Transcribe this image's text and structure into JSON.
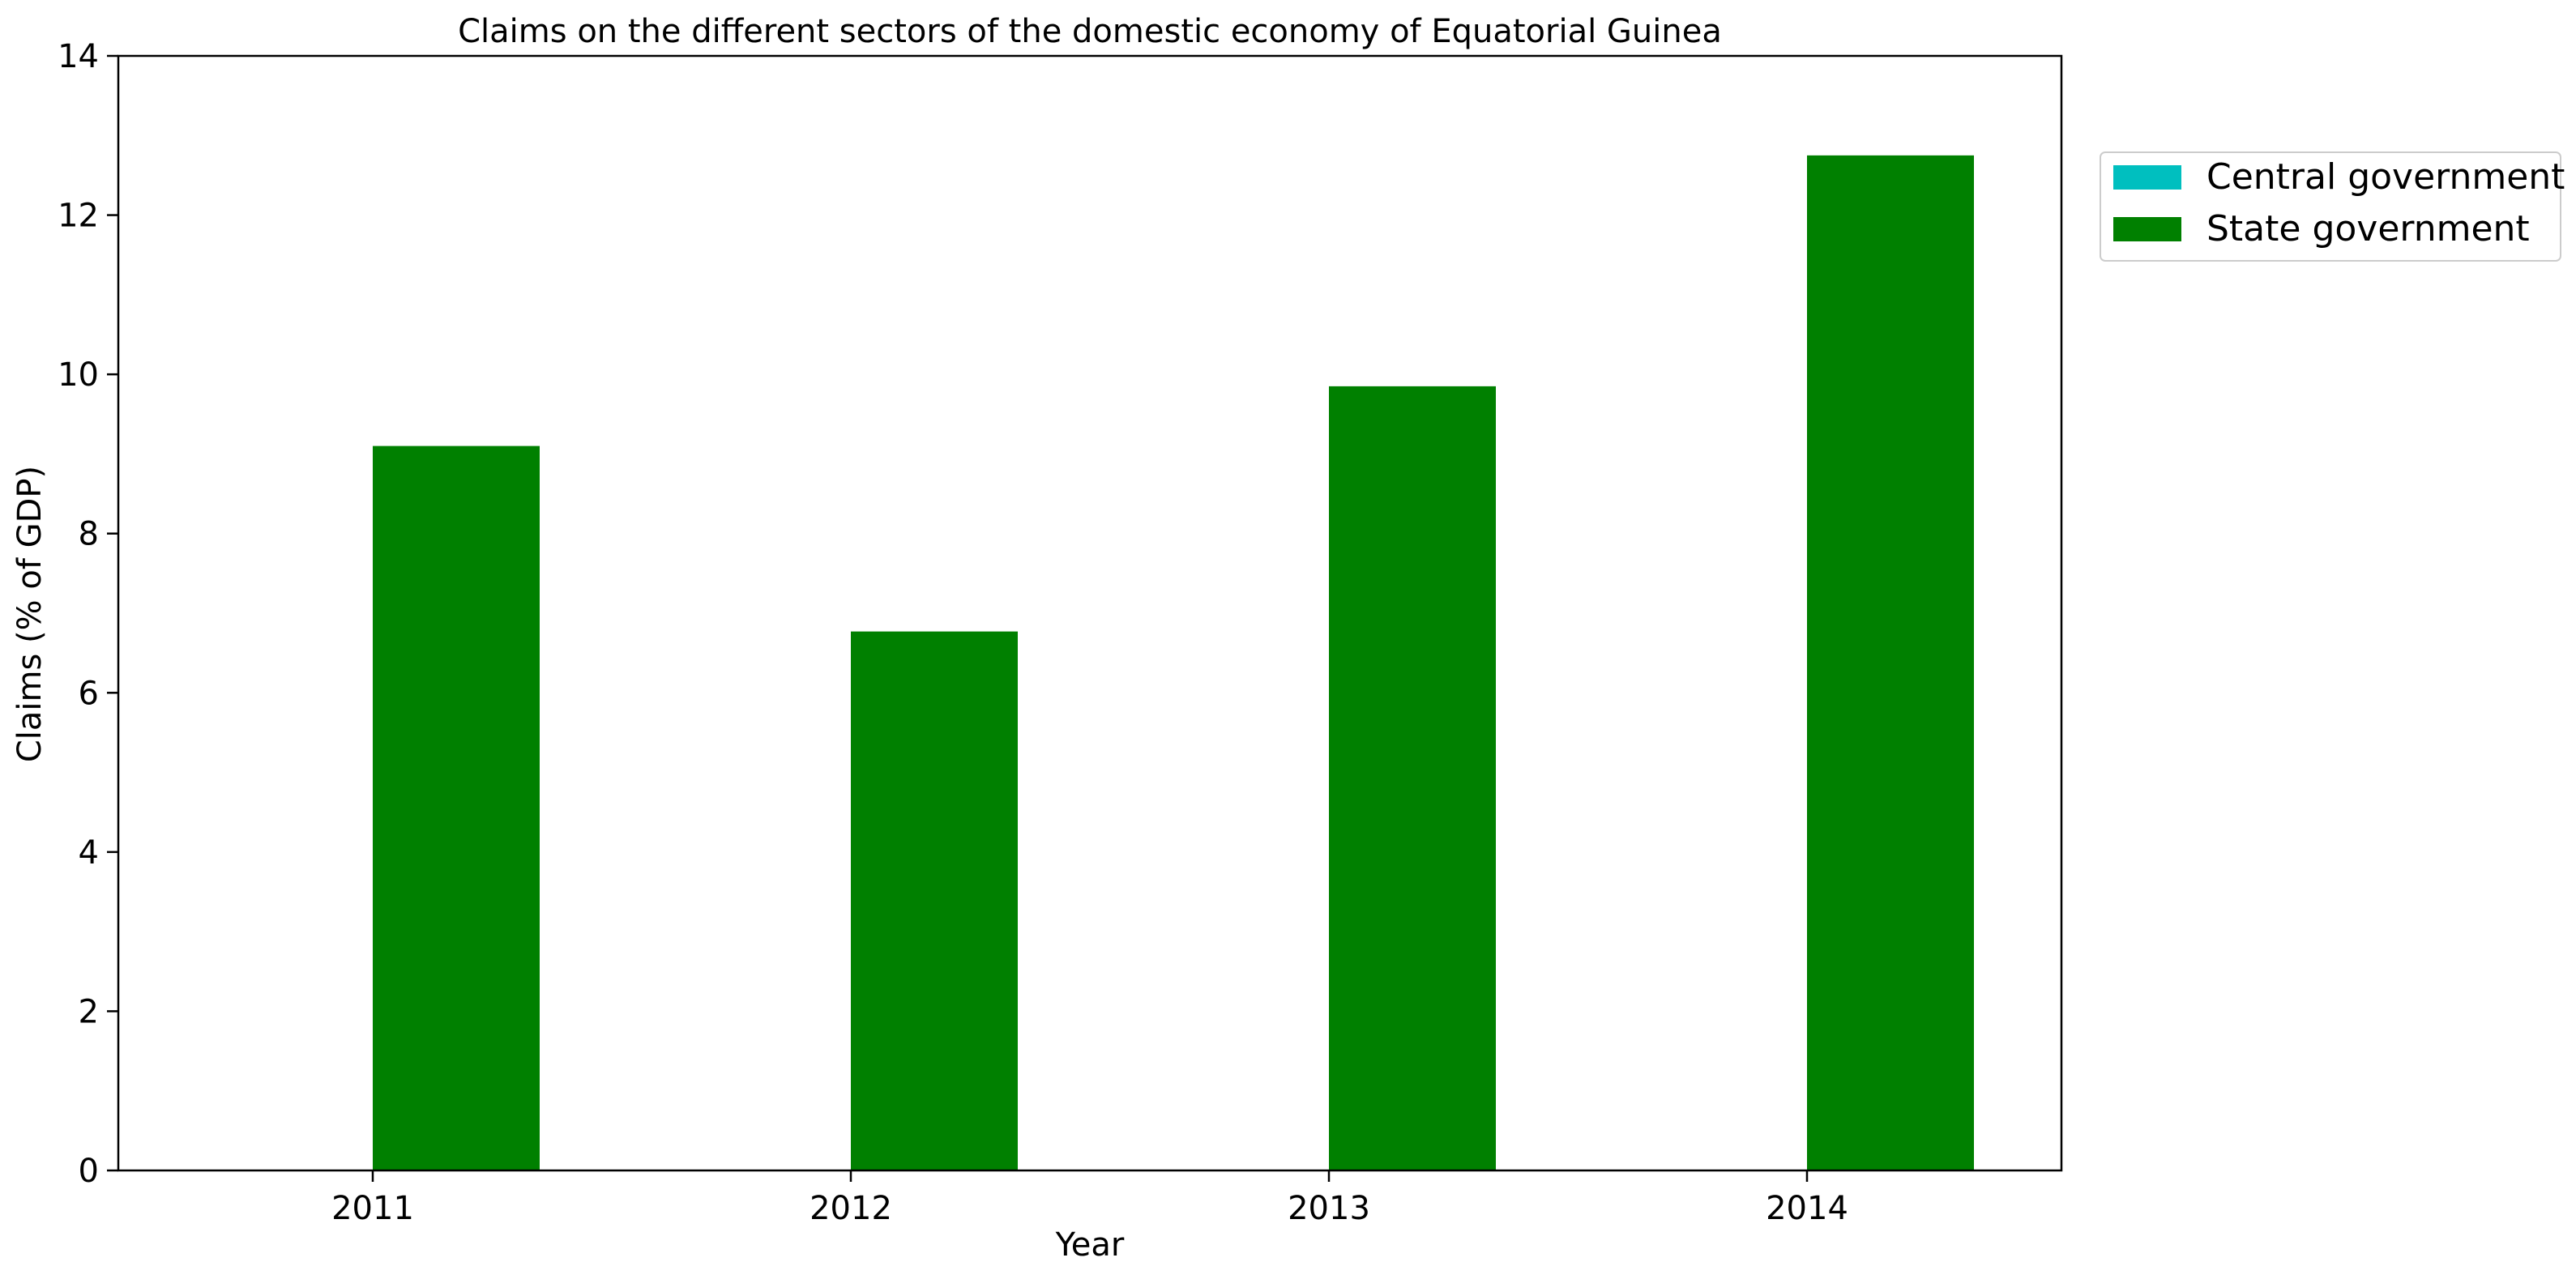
{
  "chart_data": {
    "type": "bar",
    "title": "Claims on the different sectors of the domestic economy of Equatorial Guinea",
    "xlabel": "Year",
    "ylabel": "Claims (% of GDP)",
    "categories": [
      "2011",
      "2012",
      "2013",
      "2014"
    ],
    "series": [
      {
        "name": "Central government",
        "color": "#00bfbf",
        "values": [
          0,
          0,
          0,
          0
        ]
      },
      {
        "name": "State government",
        "color": "#008000",
        "values": [
          9.1,
          6.77,
          9.85,
          12.75
        ]
      }
    ],
    "ylim": [
      0,
      14
    ],
    "yticks": [
      0,
      2,
      4,
      6,
      8,
      10,
      12,
      14
    ],
    "grid": false,
    "legend_position": "outside-top-right"
  }
}
